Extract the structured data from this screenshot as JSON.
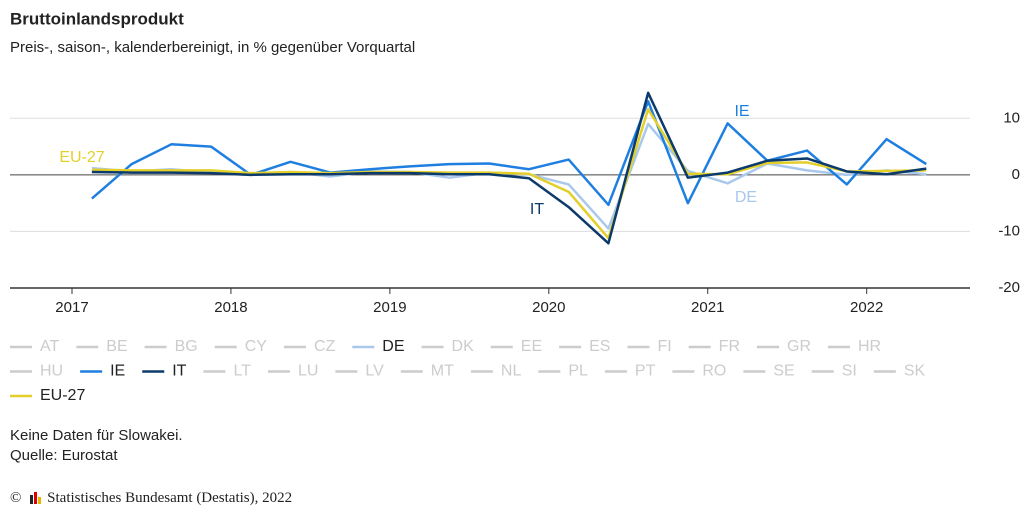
{
  "chart_data": {
    "type": "line",
    "title": "Bruttoinlandsprodukt",
    "subtitle": "Preis-, saison-, kalenderbereinigt, in % gegenüber Vorquartal",
    "x": [
      2017.125,
      2017.375,
      2017.625,
      2017.875,
      2018.125,
      2018.375,
      2018.625,
      2018.875,
      2019.125,
      2019.375,
      2019.625,
      2019.875,
      2020.125,
      2020.375,
      2020.625,
      2020.875,
      2021.125,
      2021.375,
      2021.625,
      2021.875,
      2022.125,
      2022.375
    ],
    "xlim": [
      2016.61,
      2022.65
    ],
    "xticks": [
      2017,
      2018,
      2019,
      2020,
      2021,
      2022
    ],
    "ylim": [
      -20,
      15
    ],
    "yticks": [
      10,
      0,
      -10,
      -20
    ],
    "grid": true,
    "series": [
      {
        "name": "DE",
        "color": "#a9c8ec",
        "values": [
          1.2,
          0.6,
          1.0,
          0.4,
          0.0,
          0.5,
          -0.3,
          0.6,
          0.5,
          -0.5,
          0.4,
          0.1,
          -1.7,
          -9.5,
          9.0,
          0.7,
          -1.5,
          2.0,
          0.8,
          0.0,
          0.8,
          0.1
        ]
      },
      {
        "name": "IE",
        "color": "#1f7fe0",
        "values": [
          -4.2,
          1.9,
          5.4,
          5.0,
          0.0,
          2.3,
          0.4,
          1.0,
          1.5,
          1.9,
          2.0,
          1.0,
          2.7,
          -5.3,
          13.0,
          -5.0,
          9.1,
          2.5,
          4.3,
          -1.7,
          6.3,
          1.9
        ]
      },
      {
        "name": "EU-27",
        "color": "#e3cf2a",
        "values": [
          0.9,
          0.8,
          0.8,
          0.8,
          0.3,
          0.5,
          0.3,
          0.5,
          0.5,
          0.4,
          0.4,
          0.2,
          -3.0,
          -11.2,
          11.6,
          0.2,
          0.1,
          2.1,
          2.2,
          0.6,
          0.7,
          0.8
        ]
      },
      {
        "name": "IT",
        "color": "#0c3a6b",
        "values": [
          0.5,
          0.4,
          0.4,
          0.3,
          0.0,
          0.1,
          0.1,
          0.3,
          0.3,
          0.1,
          0.1,
          -0.6,
          -5.7,
          -12.1,
          14.5,
          -0.5,
          0.4,
          2.5,
          2.9,
          0.6,
          0.1,
          1.1
        ]
      }
    ],
    "legend": [
      "AT",
      "BE",
      "BG",
      "CY",
      "CZ",
      "DE",
      "DK",
      "EE",
      "ES",
      "FI",
      "FR",
      "GR",
      "HR",
      "HU",
      "IE",
      "IT",
      "LT",
      "LU",
      "LV",
      "MT",
      "NL",
      "PL",
      "PT",
      "RO",
      "SE",
      "SI",
      "SK",
      "EU-27"
    ],
    "inactive_color": "#cccccc",
    "notes": [
      "Keine Daten für Slowakei.",
      "Quelle: Eurostat"
    ],
    "copyright": "© Statistisches Bundesamt (Destatis), 2022"
  }
}
